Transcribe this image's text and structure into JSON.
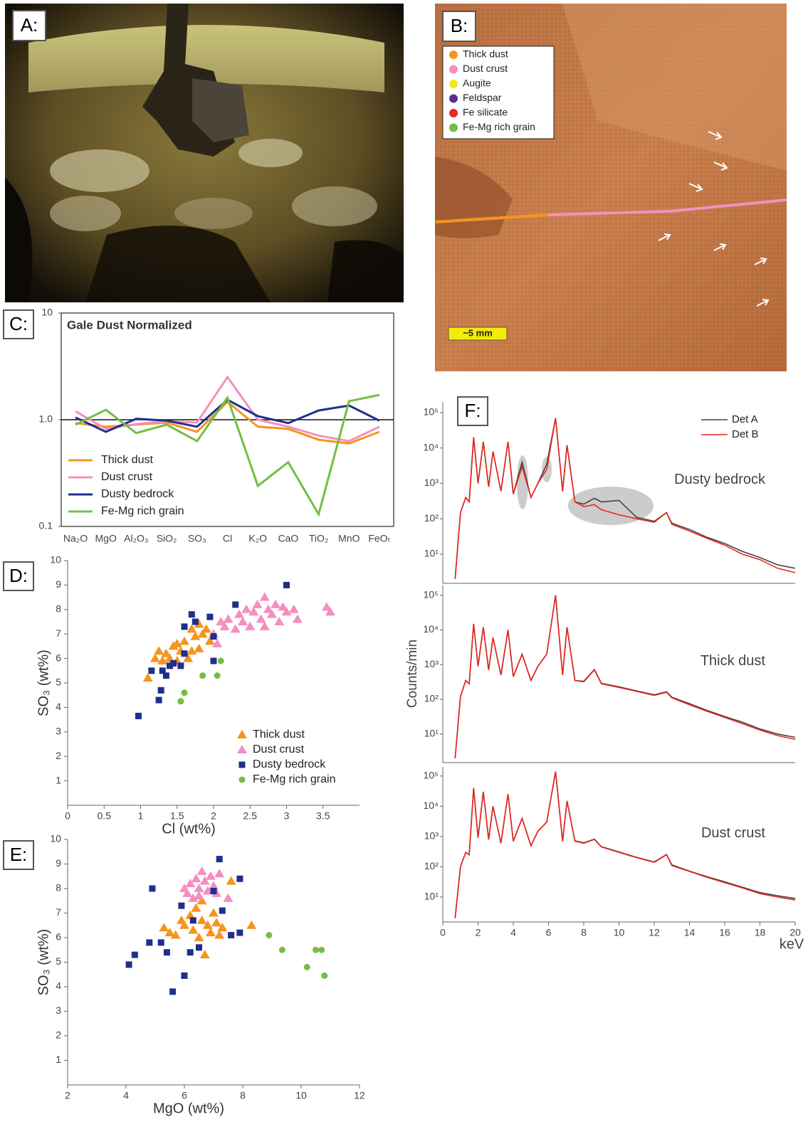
{
  "image_a": {
    "label": "A:"
  },
  "image_b": {
    "label": "B:",
    "legend": [
      {
        "name": "Thick dust",
        "color": "#f7941d"
      },
      {
        "name": "Dust crust",
        "color": "#f48fc0"
      },
      {
        "name": "Augite",
        "color": "#f5e61a"
      },
      {
        "name": "Feldspar",
        "color": "#5b2d90"
      },
      {
        "name": "Fe silicate",
        "color": "#e8262b"
      },
      {
        "name": "Fe-Mg rich grain",
        "color": "#72bf44"
      }
    ],
    "scale_bar": "~5 mm"
  },
  "chart_data": [
    {
      "type": "line",
      "label": "C:",
      "title": "Gale Dust Normalized",
      "log_scale": true,
      "ylim": [
        0.1,
        10
      ],
      "yticks": [
        10,
        {
          "value": 1,
          "label": "1.0"
        },
        0.1
      ],
      "reference_line": 1,
      "categories": [
        "Na₂O",
        "MgO",
        "Al₂O₃",
        "SiO₂",
        "SO₃",
        "Cl",
        "K₂O",
        "CaO",
        "TiO₂",
        "MnO",
        "FeOₜ"
      ],
      "series": [
        {
          "name": "Thick dust",
          "color": "#f7941d",
          "values": [
            0.93,
            0.86,
            0.9,
            0.94,
            0.77,
            1.47,
            0.86,
            0.82,
            0.65,
            0.6,
            0.77
          ]
        },
        {
          "name": "Dust crust",
          "color": "#f48fc0",
          "values": [
            1.2,
            0.82,
            0.91,
            0.97,
            0.94,
            2.51,
            1.0,
            0.86,
            0.71,
            0.63,
            0.86
          ]
        },
        {
          "name": "Dusty bedrock",
          "color": "#1f2f8c",
          "values": [
            1.05,
            0.77,
            1.02,
            0.98,
            0.86,
            1.54,
            1.08,
            0.93,
            1.22,
            1.36,
            0.98
          ]
        },
        {
          "name": "Fe-Mg rich grain",
          "color": "#72bf44",
          "values": [
            0.9,
            1.24,
            0.75,
            0.9,
            0.63,
            1.61,
            0.24,
            0.4,
            0.13,
            1.49,
            1.71
          ]
        }
      ]
    },
    {
      "type": "scatter",
      "label": "D:",
      "xlabel": "Cl (wt%)",
      "ylabel": "SO₃ (wt%)",
      "xlim": [
        0,
        4
      ],
      "ylim": [
        0,
        10
      ],
      "xticks": [
        0,
        0.5,
        1,
        1.5,
        2,
        2.5,
        3,
        3.5
      ],
      "yticks": [
        1,
        2,
        3,
        4,
        5,
        6,
        7,
        8,
        9,
        10
      ],
      "legend": true,
      "series": [
        {
          "name": "Thick dust",
          "color": "#f7941d",
          "marker": "triangle",
          "x": [
            1.1,
            1.2,
            1.25,
            1.3,
            1.35,
            1.4,
            1.45,
            1.5,
            1.55,
            1.6,
            1.65,
            1.7,
            1.75,
            1.8,
            1.85,
            1.9,
            1.95,
            1.7,
            1.8,
            1.5
          ],
          "values": [
            5.2,
            6.0,
            6.3,
            5.9,
            6.2,
            6.0,
            6.5,
            6.6,
            6.3,
            6.7,
            6.0,
            6.3,
            6.9,
            6.4,
            7.0,
            7.2,
            6.7,
            7.2,
            7.4,
            5.9
          ]
        },
        {
          "name": "Dust crust",
          "color": "#f48fc0",
          "marker": "triangle",
          "x": [
            2.0,
            2.1,
            2.15,
            2.2,
            2.3,
            2.35,
            2.4,
            2.45,
            2.5,
            2.55,
            2.6,
            2.65,
            2.7,
            2.75,
            2.8,
            2.85,
            2.9,
            2.95,
            3.0,
            3.1,
            3.15,
            3.55,
            3.6,
            2.05,
            2.7
          ],
          "values": [
            7.0,
            7.5,
            7.3,
            7.6,
            7.2,
            7.8,
            7.5,
            8.0,
            7.3,
            7.9,
            8.2,
            7.6,
            8.5,
            8.0,
            7.8,
            8.2,
            7.5,
            8.1,
            7.9,
            8.0,
            7.6,
            8.1,
            7.9,
            6.6,
            7.3
          ]
        },
        {
          "name": "Dusty bedrock",
          "color": "#1f2f8c",
          "marker": "square",
          "x": [
            0.97,
            1.25,
            1.28,
            1.3,
            1.35,
            1.4,
            1.45,
            1.55,
            1.6,
            1.6,
            1.7,
            1.75,
            1.95,
            2.0,
            1.15,
            2.3,
            3.0,
            2.0
          ],
          "values": [
            3.65,
            4.3,
            4.7,
            5.5,
            5.3,
            5.7,
            5.8,
            5.7,
            6.2,
            7.3,
            7.8,
            7.5,
            7.7,
            5.9,
            5.5,
            8.2,
            9.0,
            6.9
          ]
        },
        {
          "name": "Fe-Mg rich grain",
          "color": "#72bf44",
          "marker": "circle",
          "x": [
            1.55,
            1.6,
            1.85,
            2.05,
            2.1
          ],
          "values": [
            4.25,
            4.6,
            5.3,
            5.3,
            5.9
          ]
        }
      ]
    },
    {
      "type": "scatter",
      "label": "E:",
      "xlabel": "MgO (wt%)",
      "ylabel": "SO₃ (wt%)",
      "xlim": [
        2,
        12
      ],
      "ylim": [
        0,
        10
      ],
      "xticks": [
        2,
        4,
        6,
        8,
        10,
        12
      ],
      "yticks": [
        1,
        2,
        3,
        4,
        5,
        6,
        7,
        8,
        9,
        10
      ],
      "legend": false,
      "series": [
        {
          "color": "#f7941d",
          "marker": "triangle",
          "x": [
            5.3,
            5.5,
            5.7,
            5.9,
            6.0,
            6.2,
            6.3,
            6.4,
            6.5,
            6.6,
            6.7,
            6.8,
            6.9,
            7.0,
            7.1,
            7.2,
            7.6,
            8.3,
            6.6,
            7.3
          ],
          "values": [
            6.4,
            6.2,
            6.1,
            6.7,
            6.5,
            6.9,
            6.3,
            7.2,
            6.0,
            6.7,
            5.3,
            6.5,
            6.2,
            7.0,
            6.6,
            6.1,
            8.3,
            6.5,
            7.5,
            6.4
          ]
        },
        {
          "color": "#f48fc0",
          "marker": "triangle",
          "x": [
            6.1,
            6.2,
            6.3,
            6.4,
            6.5,
            6.6,
            6.7,
            6.8,
            6.9,
            7.0,
            7.2,
            7.5,
            6.0,
            6.5,
            7.1
          ],
          "values": [
            7.8,
            8.2,
            7.6,
            8.4,
            8.0,
            8.7,
            8.3,
            7.9,
            8.5,
            8.1,
            8.6,
            7.6,
            8.0,
            7.7,
            7.8
          ]
        },
        {
          "color": "#1f2f8c",
          "marker": "square",
          "x": [
            4.1,
            4.3,
            4.8,
            4.9,
            5.2,
            5.4,
            5.6,
            5.9,
            6.0,
            6.2,
            6.5,
            7.0,
            7.2,
            7.3,
            7.6,
            7.9,
            7.9,
            6.3
          ],
          "values": [
            4.9,
            5.3,
            5.8,
            8.0,
            5.8,
            5.4,
            3.8,
            7.3,
            4.45,
            5.4,
            5.6,
            7.9,
            9.2,
            7.1,
            6.1,
            6.2,
            8.4,
            6.7
          ]
        },
        {
          "color": "#72bf44",
          "marker": "circle",
          "x": [
            8.9,
            9.35,
            10.2,
            10.5,
            10.7,
            10.8
          ],
          "values": [
            6.1,
            5.5,
            4.8,
            5.5,
            5.5,
            4.45
          ]
        }
      ]
    },
    {
      "type": "line",
      "label": "F:",
      "title": "Dusty bedrock",
      "log_scale": true,
      "xlim": [
        0,
        20
      ],
      "ylim": [
        1.5,
        200000
      ],
      "yticks": [
        {
          "value": 10,
          "label": "10¹"
        },
        {
          "value": 100,
          "label": "10²"
        },
        {
          "value": 1000,
          "label": "10³"
        },
        {
          "value": 10000,
          "label": "10⁴"
        },
        {
          "value": 100000,
          "label": "10⁵"
        }
      ],
      "x": [
        0.7,
        1.0,
        1.3,
        1.5,
        1.75,
        2.0,
        2.3,
        2.6,
        2.85,
        3.3,
        3.7,
        4.0,
        4.5,
        5.0,
        5.4,
        5.9,
        6.4,
        6.8,
        7.05,
        7.5,
        8.0,
        8.6,
        9.0,
        10,
        11,
        12,
        12.7,
        13,
        14,
        15,
        16,
        17,
        18,
        19,
        20
      ],
      "series": [
        {
          "name": "Det A",
          "color": "#444444",
          "values": [
            2,
            150,
            400,
            300,
            20000,
            1000,
            15000,
            800,
            8000,
            600,
            15000,
            500,
            4000,
            400,
            1000,
            3500,
            70000,
            600,
            12000,
            300,
            260,
            380,
            300,
            330,
            110,
            85,
            150,
            75,
            50,
            30,
            20,
            12,
            8,
            5,
            4
          ]
        },
        {
          "name": "Det B",
          "color": "#e8261e",
          "values": [
            2,
            150,
            400,
            300,
            20000,
            1000,
            15000,
            800,
            8000,
            600,
            15000,
            500,
            3000,
            400,
            1000,
            2500,
            70000,
            600,
            12000,
            300,
            220,
            250,
            180,
            130,
            100,
            80,
            150,
            70,
            45,
            28,
            18,
            10,
            7,
            4,
            3
          ]
        }
      ]
    },
    {
      "type": "line",
      "title": "Thick dust",
      "ylabel": "Counts/min",
      "log_scale": true,
      "xlim": [
        0,
        20
      ],
      "ylim": [
        1.5,
        200000
      ],
      "yticks": [
        {
          "value": 10,
          "label": "10¹"
        },
        {
          "value": 100,
          "label": "10²"
        },
        {
          "value": 1000,
          "label": "10³"
        },
        {
          "value": 10000,
          "label": "10⁴"
        },
        {
          "value": 100000,
          "label": "10⁵"
        }
      ],
      "x": [
        0.7,
        1.0,
        1.3,
        1.5,
        1.75,
        2.0,
        2.3,
        2.6,
        2.85,
        3.3,
        3.7,
        4.0,
        4.5,
        5.0,
        5.4,
        5.9,
        6.4,
        6.8,
        7.05,
        7.5,
        8.0,
        8.6,
        9.0,
        10,
        11,
        12,
        12.7,
        13,
        14,
        15,
        16,
        17,
        18,
        19,
        20
      ],
      "series": [
        {
          "color": "#444444",
          "values": [
            2,
            120,
            350,
            280,
            15000,
            900,
            12000,
            700,
            6000,
            500,
            10000,
            450,
            2000,
            350,
            900,
            2000,
            100000,
            500,
            12000,
            350,
            330,
            720,
            290,
            230,
            175,
            135,
            165,
            115,
            75,
            48,
            32,
            22,
            14,
            10,
            8
          ]
        },
        {
          "color": "#e8261e",
          "values": [
            2,
            120,
            350,
            280,
            15000,
            900,
            12000,
            700,
            6000,
            500,
            10000,
            450,
            2000,
            350,
            900,
            2000,
            100000,
            500,
            12000,
            350,
            320,
            700,
            280,
            220,
            170,
            130,
            160,
            110,
            70,
            45,
            30,
            20,
            13,
            9,
            7
          ]
        }
      ]
    },
    {
      "type": "line",
      "title": "Dust crust",
      "xlabel": "keV",
      "log_scale": true,
      "xlim": [
        0,
        20
      ],
      "ylim": [
        1.5,
        200000
      ],
      "xticks": [
        0,
        2,
        4,
        6,
        8,
        10,
        12,
        14,
        16,
        18,
        20
      ],
      "yticks": [
        {
          "value": 10,
          "label": "10¹"
        },
        {
          "value": 100,
          "label": "10²"
        },
        {
          "value": 1000,
          "label": "10³"
        },
        {
          "value": 10000,
          "label": "10⁴"
        },
        {
          "value": 100000,
          "label": "10⁵"
        }
      ],
      "x": [
        0.7,
        1.0,
        1.3,
        1.5,
        1.75,
        2.0,
        2.3,
        2.6,
        2.85,
        3.3,
        3.7,
        4.0,
        4.5,
        5.0,
        5.4,
        5.9,
        6.4,
        6.8,
        7.05,
        7.5,
        8.0,
        8.6,
        9.0,
        10,
        11,
        12,
        12.7,
        13,
        14,
        15,
        16,
        17,
        18,
        19,
        20
      ],
      "series": [
        {
          "color": "#444444",
          "values": [
            2,
            100,
            300,
            250,
            40000,
            900,
            30000,
            800,
            10000,
            600,
            25000,
            700,
            4000,
            500,
            1500,
            3000,
            140000,
            700,
            15000,
            720,
            620,
            820,
            460,
            310,
            205,
            145,
            255,
            115,
            72,
            47,
            32,
            21,
            14,
            11,
            9
          ]
        },
        {
          "color": "#e8261e",
          "values": [
            2,
            100,
            300,
            250,
            40000,
            900,
            30000,
            800,
            10000,
            600,
            25000,
            700,
            4000,
            500,
            1500,
            3000,
            140000,
            700,
            15000,
            700,
            600,
            800,
            450,
            300,
            200,
            140,
            250,
            110,
            70,
            45,
            30,
            20,
            13,
            10,
            8
          ]
        }
      ]
    }
  ]
}
